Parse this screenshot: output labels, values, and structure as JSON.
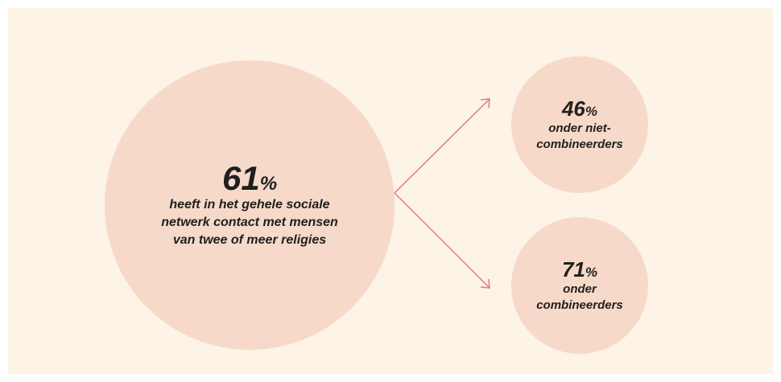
{
  "nodes": [
    {
      "value": 61,
      "unit": "%",
      "label": [
        "heeft in het gehele sociale",
        "netwerk contact met mensen",
        "van twee of meer religies"
      ]
    },
    {
      "value": 46,
      "unit": "%",
      "label": [
        "onder niet-",
        "combineerders"
      ]
    },
    {
      "value": 71,
      "unit": "%",
      "label": [
        "onder",
        "combineerders"
      ]
    }
  ]
}
